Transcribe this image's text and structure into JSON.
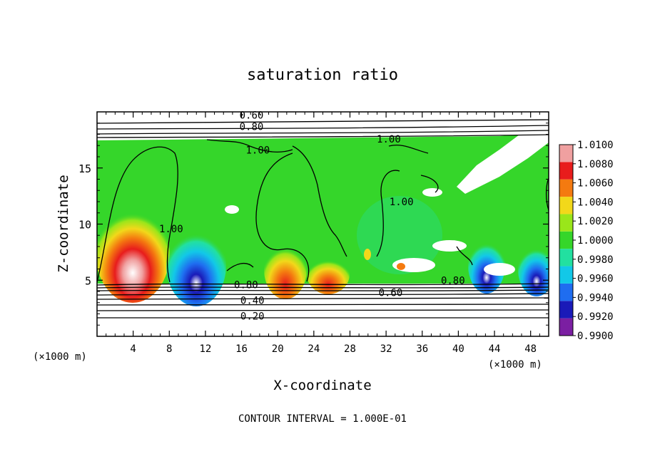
{
  "chart_data": {
    "type": "heatmap",
    "title": "saturation ratio",
    "xlabel": "X-coordinate",
    "ylabel": "Z-coordinate",
    "x_unit_left": "(×1000 m)",
    "x_unit_right": "(×1000 m)",
    "footer": "CONTOUR INTERVAL = 1.000E-01",
    "xlim": [
      0,
      50
    ],
    "ylim": [
      0,
      20
    ],
    "x_ticks": [
      4,
      8,
      12,
      16,
      20,
      24,
      28,
      32,
      36,
      40,
      44,
      48
    ],
    "y_ticks": [
      5,
      10,
      15
    ],
    "colorbar": {
      "levels": [
        0.99,
        0.992,
        0.994,
        0.996,
        0.998,
        1.0,
        1.002,
        1.004,
        1.006,
        1.008,
        1.01
      ],
      "labels": [
        "0.9900",
        "0.9920",
        "0.9940",
        "0.9960",
        "0.9980",
        "1.0000",
        "1.0020",
        "1.0040",
        "1.0060",
        "1.0080",
        "1.0100"
      ],
      "colors": [
        "#7b1fa2",
        "#1a1ab8",
        "#1f6df0",
        "#12c8e8",
        "#22e0a0",
        "#35d62a",
        "#9ae61a",
        "#f2d81a",
        "#f47a10",
        "#e81c1c",
        "#f0a0a0"
      ]
    },
    "contour_labels": [
      {
        "text": "0.60",
        "x": 17.1,
        "y": 19.7
      },
      {
        "text": "0.80",
        "x": 17.1,
        "y": 18.7
      },
      {
        "text": "1.00",
        "x": 17.8,
        "y": 16.6
      },
      {
        "text": "1.00",
        "x": 32.3,
        "y": 17.6
      },
      {
        "text": "1.00",
        "x": 8.2,
        "y": 9.6
      },
      {
        "text": "1.00",
        "x": 33.7,
        "y": 12.0
      },
      {
        "text": "0.80",
        "x": 16.5,
        "y": 4.6
      },
      {
        "text": "0.80",
        "x": 39.4,
        "y": 5.0
      },
      {
        "text": "0.60",
        "x": 32.5,
        "y": 3.9
      },
      {
        "text": "0.40",
        "x": 17.2,
        "y": 3.2
      },
      {
        "text": "0.20",
        "x": 17.2,
        "y": 1.8
      }
    ],
    "contour_levels": [
      0.2,
      0.4,
      0.6,
      0.8,
      1.0
    ],
    "features": [
      {
        "kind": "supersaturated",
        "x": 4.5,
        "z": 7.5,
        "value": 1.01
      },
      {
        "kind": "subsaturated",
        "x": 11.0,
        "z": 6.5,
        "value": 0.992
      },
      {
        "kind": "supersaturated",
        "x": 21.0,
        "z": 6.0,
        "value": 1.005
      },
      {
        "kind": "supersaturated",
        "x": 26.5,
        "z": 5.5,
        "value": 1.004
      },
      {
        "kind": "subsaturated",
        "x": 43.0,
        "z": 6.5,
        "value": 0.993
      },
      {
        "kind": "subsaturated",
        "x": 48.5,
        "z": 6.0,
        "value": 0.991
      }
    ]
  }
}
